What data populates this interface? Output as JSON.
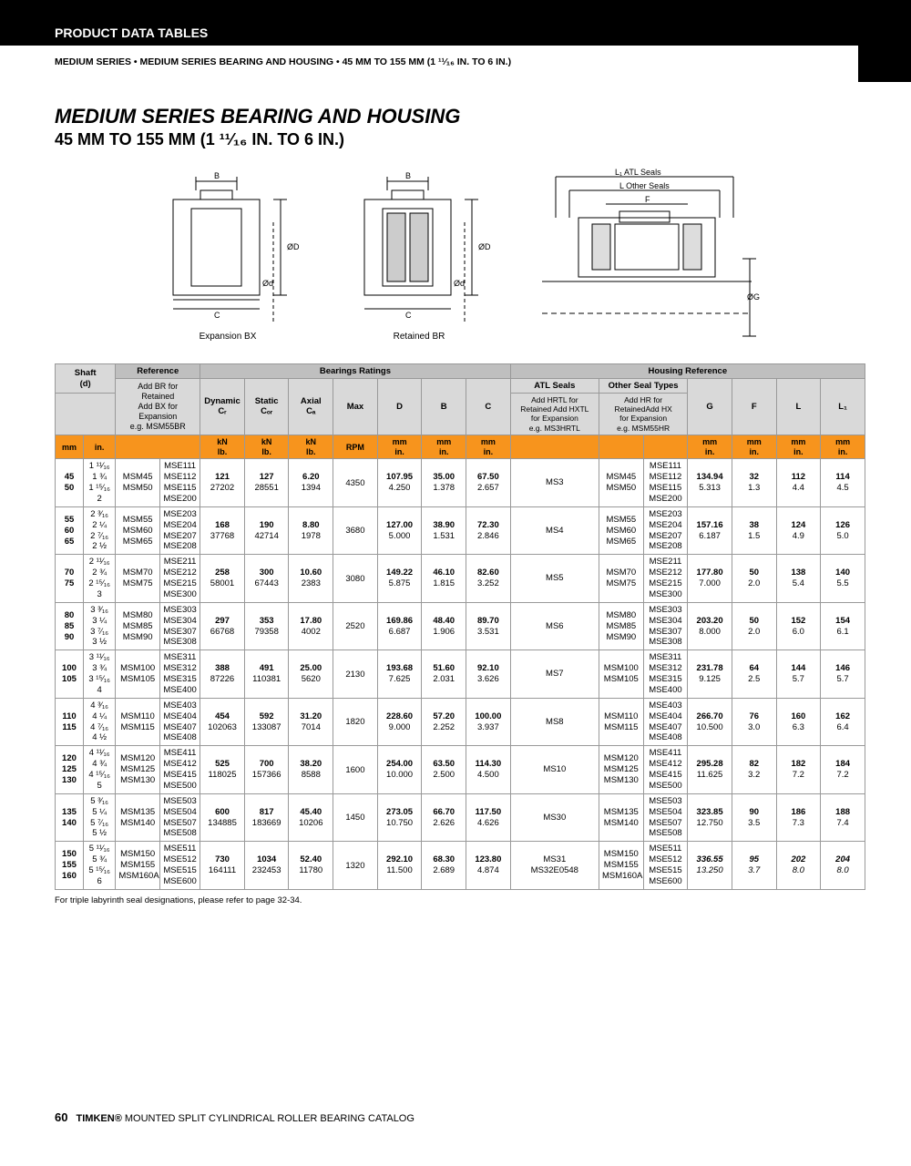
{
  "header": {
    "section": "PRODUCT DATA TABLES",
    "breadcrumb": "MEDIUM SERIES • MEDIUM SERIES BEARING AND HOUSING • 45 MM TO 155 MM (1 ¹¹⁄₁₆ IN. TO 6 IN.)"
  },
  "title": {
    "main": "MEDIUM SERIES BEARING AND HOUSING",
    "sub": "45 MM TO 155 MM (1 ¹¹⁄₁₆ IN. TO 6 IN.)"
  },
  "diagrams": {
    "bx": "Expansion BX",
    "br": "Retained  BR",
    "labels": {
      "b": "B",
      "c": "C",
      "od": "ØD",
      "odl": "Ød",
      "l1": "L₁ ATL Seals",
      "l": "L Other Seals",
      "f": "F",
      "og": "ØG"
    }
  },
  "table": {
    "groupHeaders": {
      "shaft": "Shaft\n(d)",
      "reference": "Reference",
      "ref_note": "Add BR for\nRetained\nAdd BX for\nExpansion\ne.g. MSM55BR",
      "bearings": "Bearings Ratings",
      "housing": "Housing Reference",
      "atl": "ATL Seals",
      "atl_note": "Add HRTL for\nRetained Add HXTL\nfor Expansion\ne.g. MS3HRTL",
      "other": "Other Seal Types",
      "other_note": "Add HR for\nRetainedAdd HX\nfor Expansion\ne.g. MSM55HR"
    },
    "cols": {
      "dynamic": "Dynamic\nCᵣ",
      "static": "Static\nCₒᵣ",
      "axial": "Axial\nCₐ",
      "max": "Max",
      "d": "D",
      "b": "B",
      "c": "C",
      "g": "G",
      "f": "F",
      "l": "L",
      "l1": "L₁"
    },
    "units": {
      "mm": "mm",
      "in": "in.",
      "knlb": "kN\nlb.",
      "rpm": "RPM",
      "mm_in": "mm\nin."
    },
    "rows": [
      {
        "shaft_mm": [
          "45",
          "50"
        ],
        "shaft_in": [
          "1 ¹¹⁄₁₆",
          "1 ¾",
          "1 ¹⁵⁄₁₆",
          "2"
        ],
        "ref1": [
          "MSM45",
          "MSM50"
        ],
        "ref2": [
          "MSE111",
          "MSE112",
          "MSE115",
          "MSE200"
        ],
        "dyn": [
          "121",
          "27202"
        ],
        "stat": [
          "127",
          "28551"
        ],
        "ax": [
          "6.20",
          "1394"
        ],
        "rpm": "4350",
        "d": [
          "107.95",
          "4.250"
        ],
        "b": [
          "35.00",
          "1.378"
        ],
        "c": [
          "67.50",
          "2.657"
        ],
        "atl": "MS3",
        "oth1": [
          "MSM45",
          "MSM50"
        ],
        "oth2": [
          "MSE111",
          "MSE112",
          "MSE115",
          "MSE200"
        ],
        "g": [
          "134.94",
          "5.313"
        ],
        "f": [
          "32",
          "1.3"
        ],
        "l": [
          "112",
          "4.4"
        ],
        "l1": [
          "114",
          "4.5"
        ]
      },
      {
        "shaft_mm": [
          "55",
          "60",
          "65"
        ],
        "shaft_in": [
          "2 ³⁄₁₆",
          "2 ¼",
          "2 ⁷⁄₁₆",
          "2 ½"
        ],
        "ref1": [
          "MSM55",
          "MSM60",
          "MSM65"
        ],
        "ref2": [
          "MSE203",
          "MSE204",
          "MSE207",
          "MSE208"
        ],
        "dyn": [
          "168",
          "37768"
        ],
        "stat": [
          "190",
          "42714"
        ],
        "ax": [
          "8.80",
          "1978"
        ],
        "rpm": "3680",
        "d": [
          "127.00",
          "5.000"
        ],
        "b": [
          "38.90",
          "1.531"
        ],
        "c": [
          "72.30",
          "2.846"
        ],
        "atl": "MS4",
        "oth1": [
          "MSM55",
          "MSM60",
          "MSM65"
        ],
        "oth2": [
          "MSE203",
          "MSE204",
          "MSE207",
          "MSE208"
        ],
        "g": [
          "157.16",
          "6.187"
        ],
        "f": [
          "38",
          "1.5"
        ],
        "l": [
          "124",
          "4.9"
        ],
        "l1": [
          "126",
          "5.0"
        ]
      },
      {
        "shaft_mm": [
          "70",
          "75"
        ],
        "shaft_in": [
          "2 ¹¹⁄₁₆",
          "2 ¾",
          "2 ¹⁵⁄₁₆",
          "3"
        ],
        "ref1": [
          "MSM70",
          "MSM75"
        ],
        "ref2": [
          "MSE211",
          "MSE212",
          "MSE215",
          "MSE300"
        ],
        "dyn": [
          "258",
          "58001"
        ],
        "stat": [
          "300",
          "67443"
        ],
        "ax": [
          "10.60",
          "2383"
        ],
        "rpm": "3080",
        "d": [
          "149.22",
          "5.875"
        ],
        "b": [
          "46.10",
          "1.815"
        ],
        "c": [
          "82.60",
          "3.252"
        ],
        "atl": "MS5",
        "oth1": [
          "MSM70",
          "MSM75"
        ],
        "oth2": [
          "MSE211",
          "MSE212",
          "MSE215",
          "MSE300"
        ],
        "g": [
          "177.80",
          "7.000"
        ],
        "f": [
          "50",
          "2.0"
        ],
        "l": [
          "138",
          "5.4"
        ],
        "l1": [
          "140",
          "5.5"
        ]
      },
      {
        "shaft_mm": [
          "80",
          "85",
          "90"
        ],
        "shaft_in": [
          "3 ³⁄₁₆",
          "3 ¼",
          "3 ⁷⁄₁₆",
          "3 ½"
        ],
        "ref1": [
          "MSM80",
          "MSM85",
          "MSM90"
        ],
        "ref2": [
          "MSE303",
          "MSE304",
          "MSE307",
          "MSE308"
        ],
        "dyn": [
          "297",
          "66768"
        ],
        "stat": [
          "353",
          "79358"
        ],
        "ax": [
          "17.80",
          "4002"
        ],
        "rpm": "2520",
        "d": [
          "169.86",
          "6.687"
        ],
        "b": [
          "48.40",
          "1.906"
        ],
        "c": [
          "89.70",
          "3.531"
        ],
        "atl": "MS6",
        "oth1": [
          "MSM80",
          "MSM85",
          "MSM90"
        ],
        "oth2": [
          "MSE303",
          "MSE304",
          "MSE307",
          "MSE308"
        ],
        "g": [
          "203.20",
          "8.000"
        ],
        "f": [
          "50",
          "2.0"
        ],
        "l": [
          "152",
          "6.0"
        ],
        "l1": [
          "154",
          "6.1"
        ]
      },
      {
        "shaft_mm": [
          "100",
          "105"
        ],
        "shaft_in": [
          "3 ¹¹⁄₁₆",
          "3 ¾",
          "3 ¹⁵⁄₁₆",
          "4"
        ],
        "ref1": [
          "MSM100",
          "MSM105"
        ],
        "ref2": [
          "MSE311",
          "MSE312",
          "MSE315",
          "MSE400"
        ],
        "dyn": [
          "388",
          "87226"
        ],
        "stat": [
          "491",
          "110381"
        ],
        "ax": [
          "25.00",
          "5620"
        ],
        "rpm": "2130",
        "d": [
          "193.68",
          "7.625"
        ],
        "b": [
          "51.60",
          "2.031"
        ],
        "c": [
          "92.10",
          "3.626"
        ],
        "atl": "MS7",
        "oth1": [
          "MSM100",
          "MSM105"
        ],
        "oth2": [
          "MSE311",
          "MSE312",
          "MSE315",
          "MSE400"
        ],
        "g": [
          "231.78",
          "9.125"
        ],
        "f": [
          "64",
          "2.5"
        ],
        "l": [
          "144",
          "5.7"
        ],
        "l1": [
          "146",
          "5.7"
        ]
      },
      {
        "shaft_mm": [
          "110",
          "115"
        ],
        "shaft_in": [
          "4 ³⁄₁₆",
          "4 ¼",
          "4 ⁷⁄₁₆",
          "4 ½"
        ],
        "ref1": [
          "MSM110",
          "MSM115"
        ],
        "ref2": [
          "MSE403",
          "MSE404",
          "MSE407",
          "MSE408"
        ],
        "dyn": [
          "454",
          "102063"
        ],
        "stat": [
          "592",
          "133087"
        ],
        "ax": [
          "31.20",
          "7014"
        ],
        "rpm": "1820",
        "d": [
          "228.60",
          "9.000"
        ],
        "b": [
          "57.20",
          "2.252"
        ],
        "c": [
          "100.00",
          "3.937"
        ],
        "atl": "MS8",
        "oth1": [
          "MSM110",
          "MSM115"
        ],
        "oth2": [
          "MSE403",
          "MSE404",
          "MSE407",
          "MSE408"
        ],
        "g": [
          "266.70",
          "10.500"
        ],
        "f": [
          "76",
          "3.0"
        ],
        "l": [
          "160",
          "6.3"
        ],
        "l1": [
          "162",
          "6.4"
        ]
      },
      {
        "shaft_mm": [
          "120",
          "125",
          "130"
        ],
        "shaft_in": [
          "4 ¹¹⁄₁₆",
          "4 ¾",
          "4 ¹⁵⁄₁₆",
          "5"
        ],
        "ref1": [
          "MSM120",
          "MSM125",
          "MSM130"
        ],
        "ref2": [
          "MSE411",
          "MSE412",
          "MSE415",
          "MSE500"
        ],
        "dyn": [
          "525",
          "118025"
        ],
        "stat": [
          "700",
          "157366"
        ],
        "ax": [
          "38.20",
          "8588"
        ],
        "rpm": "1600",
        "d": [
          "254.00",
          "10.000"
        ],
        "b": [
          "63.50",
          "2.500"
        ],
        "c": [
          "114.30",
          "4.500"
        ],
        "atl": "MS10",
        "oth1": [
          "MSM120",
          "MSM125",
          "MSM130"
        ],
        "oth2": [
          "MSE411",
          "MSE412",
          "MSE415",
          "MSE500"
        ],
        "g": [
          "295.28",
          "11.625"
        ],
        "f": [
          "82",
          "3.2"
        ],
        "l": [
          "182",
          "7.2"
        ],
        "l1": [
          "184",
          "7.2"
        ]
      },
      {
        "shaft_mm": [
          "135",
          "140"
        ],
        "shaft_in": [
          "5 ³⁄₁₆",
          "5 ¼",
          "5 ⁷⁄₁₆",
          "5 ½"
        ],
        "ref1": [
          "MSM135",
          "MSM140"
        ],
        "ref2": [
          "MSE503",
          "MSE504",
          "MSE507",
          "MSE508"
        ],
        "dyn": [
          "600",
          "134885"
        ],
        "stat": [
          "817",
          "183669"
        ],
        "ax": [
          "45.40",
          "10206"
        ],
        "rpm": "1450",
        "d": [
          "273.05",
          "10.750"
        ],
        "b": [
          "66.70",
          "2.626"
        ],
        "c": [
          "117.50",
          "4.626"
        ],
        "atl": "MS30",
        "oth1": [
          "MSM135",
          "MSM140"
        ],
        "oth2": [
          "MSE503",
          "MSE504",
          "MSE507",
          "MSE508"
        ],
        "g": [
          "323.85",
          "12.750"
        ],
        "f": [
          "90",
          "3.5"
        ],
        "l": [
          "186",
          "7.3"
        ],
        "l1": [
          "188",
          "7.4"
        ]
      },
      {
        "shaft_mm": [
          "150",
          "155",
          "160"
        ],
        "shaft_in": [
          "5 ¹¹⁄₁₆",
          "5 ¾",
          "5 ¹⁵⁄₁₆",
          "6"
        ],
        "ref1": [
          "MSM150",
          "MSM155",
          "MSM160A"
        ],
        "ref2": [
          "MSE511",
          "MSE512",
          "MSE515",
          "MSE600"
        ],
        "dyn": [
          "730",
          "164111"
        ],
        "stat": [
          "1034",
          "232453"
        ],
        "ax": [
          "52.40",
          "11780"
        ],
        "rpm": "1320",
        "d": [
          "292.10",
          "11.500"
        ],
        "b": [
          "68.30",
          "2.689"
        ],
        "c": [
          "123.80",
          "4.874"
        ],
        "atl": "MS31\nMS32E0548",
        "oth1": [
          "MSM150",
          "MSM155",
          "MSM160A"
        ],
        "oth2": [
          "MSE511",
          "MSE512",
          "MSE515",
          "MSE600"
        ],
        "g": [
          "336.55",
          "13.250"
        ],
        "f": [
          "95",
          "3.7"
        ],
        "l": [
          "202",
          "8.0"
        ],
        "l1": [
          "204",
          "8.0"
        ],
        "italic_last": true
      }
    ],
    "footnote": "For triple labyrinth seal designations, please refer to page 32-34."
  },
  "footer": {
    "page": "60",
    "brand": "TIMKEN®",
    "catalog": "MOUNTED SPLIT CYLINDRICAL ROLLER BEARING CATALOG"
  },
  "colors": {
    "orange": "#f7941d",
    "grey_light": "#d9d9d9",
    "grey_dark": "#bfbfbf",
    "border": "#999999"
  }
}
